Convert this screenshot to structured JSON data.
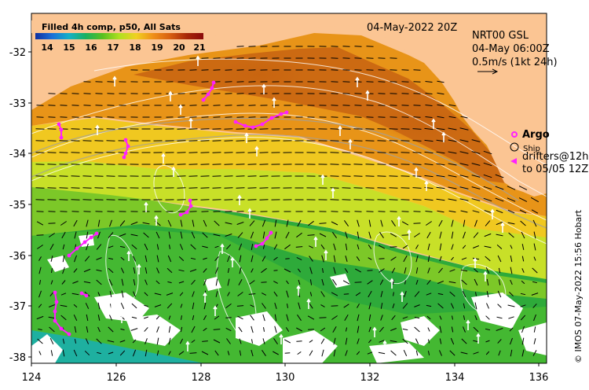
{
  "map": {
    "colorbar_title": "Filled 4h comp, p50, All Sats",
    "colorbar_ticks": [
      "14",
      "15",
      "16",
      "17",
      "18",
      "19",
      "20",
      "21"
    ],
    "colorbar_colors": [
      "#1030a0",
      "#1a70d8",
      "#12b0c8",
      "#18b060",
      "#58c020",
      "#b0e020",
      "#f0d020",
      "#f09018",
      "#d86010",
      "#a82808",
      "#8a0a0a"
    ],
    "date_label": "04-May-2022 20Z",
    "current_product": "NRT00 GSL",
    "current_time": "04-May 06:00Z",
    "scale_label": "0.5m/s (1kt 24h)",
    "legend_argo": "Argo",
    "legend_ship": "Ship",
    "legend_drifters_1": "drifters@12h",
    "legend_drifters_2": "to 05/05 12Z",
    "credit": "© IMOS 07-May-2022 15:56 Hobart",
    "lat_ticks": [
      "-32",
      "-33",
      "-34",
      "-35",
      "-36",
      "-37",
      "-38"
    ],
    "lon_ticks": [
      "124",
      "126",
      "128",
      "130",
      "132",
      "134",
      "136"
    ],
    "land_color": "#fbc593",
    "drifter_color": "#ff20ff",
    "argo_color": "#ff20ff"
  }
}
